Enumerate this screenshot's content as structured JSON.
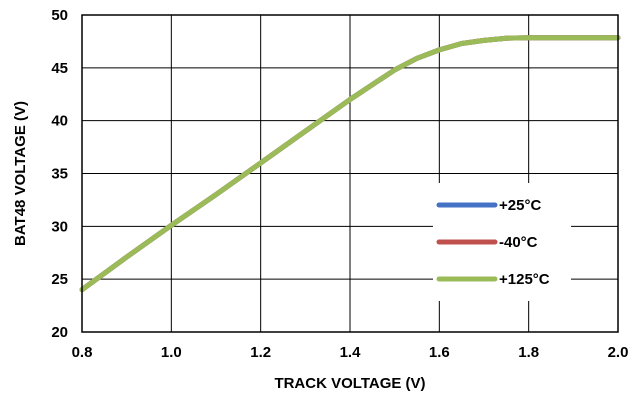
{
  "chart_data": {
    "type": "line",
    "title": "",
    "xlabel": "TRACK VOLTAGE (V)",
    "ylabel": "BAT48 VOLTAGE (V)",
    "xlim": [
      0.8,
      2.0
    ],
    "ylim": [
      20,
      50
    ],
    "xticks": [
      "0.8",
      "1.0",
      "1.2",
      "1.4",
      "1.6",
      "1.8",
      "2.0"
    ],
    "yticks": [
      "20",
      "25",
      "30",
      "35",
      "40",
      "45",
      "50"
    ],
    "grid": true,
    "legend_position": "right",
    "x": [
      0.8,
      0.9,
      1.0,
      1.1,
      1.2,
      1.3,
      1.4,
      1.5,
      1.55,
      1.6,
      1.65,
      1.7,
      1.75,
      1.8,
      1.9,
      2.0
    ],
    "series": [
      {
        "name": "+25°C",
        "color": "#4472C4",
        "values": [
          24.0,
          27.1,
          30.1,
          33.0,
          36.0,
          39.0,
          42.0,
          44.8,
          45.9,
          46.7,
          47.3,
          47.6,
          47.8,
          47.85,
          47.85,
          47.85
        ]
      },
      {
        "name": "-40°C",
        "color": "#C0504D",
        "values": [
          24.0,
          27.1,
          30.1,
          33.0,
          36.0,
          39.0,
          42.0,
          44.8,
          45.9,
          46.7,
          47.3,
          47.6,
          47.8,
          47.85,
          47.85,
          47.85
        ]
      },
      {
        "name": "+125°C",
        "color": "#9BBB59",
        "values": [
          24.0,
          27.1,
          30.1,
          33.0,
          36.0,
          39.0,
          42.0,
          44.8,
          45.9,
          46.7,
          47.3,
          47.6,
          47.8,
          47.85,
          47.85,
          47.85
        ]
      }
    ]
  }
}
